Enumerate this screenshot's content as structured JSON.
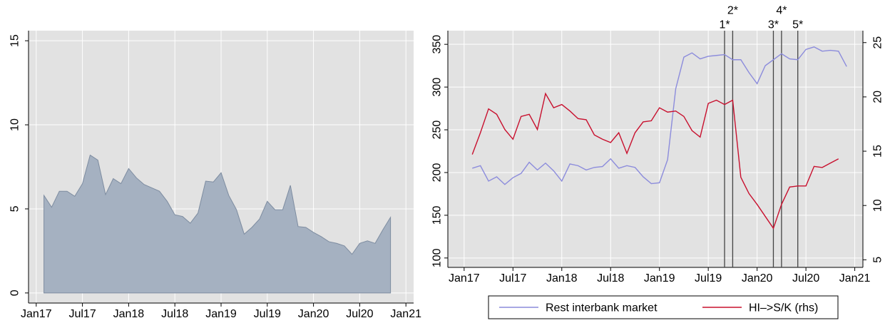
{
  "chart_data": [
    {
      "type": "area",
      "x": [
        "2017-02",
        "2017-03",
        "2017-04",
        "2017-05",
        "2017-06",
        "2017-07",
        "2017-08",
        "2017-09",
        "2017-10",
        "2017-11",
        "2017-12",
        "2018-01",
        "2018-02",
        "2018-03",
        "2018-04",
        "2018-05",
        "2018-06",
        "2018-07",
        "2018-08",
        "2018-09",
        "2018-10",
        "2018-11",
        "2018-12",
        "2019-01",
        "2019-02",
        "2019-03",
        "2019-04",
        "2019-05",
        "2019-06",
        "2019-07",
        "2019-08",
        "2019-09",
        "2019-10",
        "2019-11",
        "2019-12",
        "2020-01",
        "2020-02",
        "2020-03",
        "2020-04",
        "2020-05",
        "2020-06",
        "2020-07",
        "2020-08",
        "2020-09",
        "2020-10",
        "2020-11"
      ],
      "values": [
        5.8,
        5.1,
        6.05,
        6.05,
        5.75,
        6.5,
        8.2,
        7.9,
        5.85,
        6.8,
        6.5,
        7.4,
        6.85,
        6.45,
        6.25,
        6.05,
        5.45,
        4.65,
        4.55,
        4.15,
        4.75,
        6.65,
        6.6,
        7.15,
        5.8,
        4.95,
        3.5,
        3.9,
        4.4,
        5.45,
        4.95,
        4.95,
        6.4,
        3.95,
        3.9,
        3.6,
        3.35,
        3.05,
        2.95,
        2.8,
        2.3,
        2.95,
        3.1,
        2.95,
        3.75,
        4.5
      ],
      "color": "#a5b1c1",
      "line_color": "#7d8ca0",
      "xlim": [
        "2016-12",
        "2021-02"
      ],
      "xticks": [
        {
          "value": "2017-01",
          "label": "Jan17"
        },
        {
          "value": "2017-07",
          "label": "Jul17"
        },
        {
          "value": "2018-01",
          "label": "Jan18"
        },
        {
          "value": "2018-07",
          "label": "Jul18"
        },
        {
          "value": "2019-01",
          "label": "Jan19"
        },
        {
          "value": "2019-07",
          "label": "Jul19"
        },
        {
          "value": "2020-01",
          "label": "Jan20"
        },
        {
          "value": "2020-07",
          "label": "Jul20"
        },
        {
          "value": "2021-01",
          "label": "Jan21"
        }
      ],
      "ylim": [
        -0.6,
        15.6
      ],
      "yticks": [
        0,
        5,
        10,
        15
      ],
      "grid": true
    },
    {
      "type": "line",
      "x": [
        "2017-02",
        "2017-03",
        "2017-04",
        "2017-05",
        "2017-06",
        "2017-07",
        "2017-08",
        "2017-09",
        "2017-10",
        "2017-11",
        "2017-12",
        "2018-01",
        "2018-02",
        "2018-03",
        "2018-04",
        "2018-05",
        "2018-06",
        "2018-07",
        "2018-08",
        "2018-09",
        "2018-10",
        "2018-11",
        "2018-12",
        "2019-01",
        "2019-02",
        "2019-03",
        "2019-04",
        "2019-05",
        "2019-06",
        "2019-07",
        "2019-08",
        "2019-09",
        "2019-10",
        "2019-11",
        "2019-12",
        "2020-01",
        "2020-02",
        "2020-03",
        "2020-04",
        "2020-05",
        "2020-06",
        "2020-07",
        "2020-08",
        "2020-09",
        "2020-10",
        "2020-11",
        "2020-12"
      ],
      "series": [
        {
          "name": "Rest interbank market",
          "color": "#8c8cdc",
          "values": [
            205,
            208,
            190,
            195,
            186,
            194,
            199,
            212,
            203,
            211,
            202,
            190,
            210,
            208,
            203,
            206,
            207,
            216,
            205,
            208,
            206,
            195,
            187,
            188,
            215,
            298,
            335,
            340,
            333,
            336,
            337,
            338,
            332,
            332,
            317,
            304,
            325,
            332,
            339,
            333,
            332,
            344,
            347,
            342,
            343,
            342,
            324
          ]
        },
        {
          "name": "HI–>S/K (rhs)",
          "color": "#c8102e",
          "axis": "y2",
          "values": [
            14.7,
            16.7,
            18.9,
            18.4,
            17.0,
            16.1,
            18.2,
            18.4,
            17.0,
            20.3,
            19.0,
            19.3,
            18.7,
            18.0,
            17.9,
            16.5,
            16.1,
            15.8,
            16.7,
            14.8,
            16.7,
            17.7,
            17.8,
            19.0,
            18.6,
            18.7,
            18.2,
            16.9,
            16.3,
            19.4,
            19.7,
            19.3,
            19.7,
            12.6,
            11.1,
            10.1,
            9.0,
            7.9,
            10.1,
            11.7,
            11.8,
            11.8,
            13.6,
            13.5,
            13.9,
            14.3,
            null
          ]
        }
      ],
      "annotations": [
        {
          "x": "2019-09",
          "label": "1*"
        },
        {
          "x": "2019-10",
          "label": "2*"
        },
        {
          "x": "2020-03",
          "label": "3*"
        },
        {
          "x": "2020-04",
          "label": "4*"
        },
        {
          "x": "2020-06",
          "label": "5*"
        }
      ],
      "xlim": [
        "2016-11",
        "2021-02"
      ],
      "xticks": [
        {
          "value": "2017-01",
          "label": "Jan17"
        },
        {
          "value": "2017-07",
          "label": "Jul17"
        },
        {
          "value": "2018-01",
          "label": "Jan18"
        },
        {
          "value": "2018-07",
          "label": "Jul18"
        },
        {
          "value": "2019-01",
          "label": "Jan19"
        },
        {
          "value": "2019-07",
          "label": "Jul19"
        },
        {
          "value": "2020-01",
          "label": "Jan20"
        },
        {
          "value": "2020-07",
          "label": "Jul20"
        },
        {
          "value": "2021-01",
          "label": "Jan21"
        }
      ],
      "ylim": [
        89,
        366
      ],
      "yticks": [
        100,
        150,
        200,
        250,
        300,
        350
      ],
      "y2lim": [
        4.3,
        26.1
      ],
      "y2ticks": [
        5,
        10,
        15,
        20,
        25
      ],
      "grid": true,
      "legend": "bottom"
    }
  ]
}
